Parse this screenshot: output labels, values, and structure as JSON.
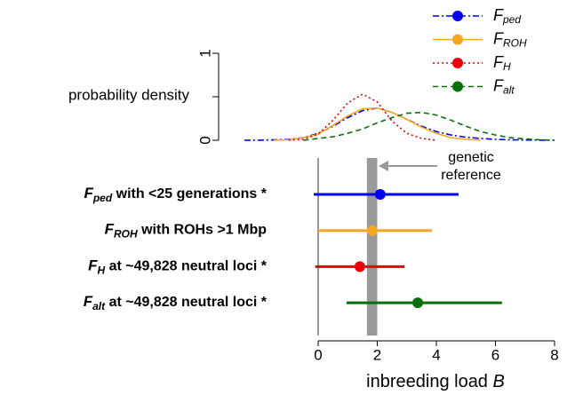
{
  "chart_data": [
    {
      "type": "density",
      "ylabel": "probability density",
      "xlim": [
        0,
        8
      ],
      "ylim": [
        0,
        1
      ],
      "yticks": [
        0,
        1
      ],
      "yminor_ticks": [
        0.5
      ],
      "series": [
        {
          "symbol": "F",
          "sub": "ped",
          "color": "#0000ee",
          "style": "dashdot",
          "x": [
            -2.5,
            -2,
            -1.5,
            -1,
            -0.5,
            0,
            0.5,
            1,
            1.5,
            2,
            2.5,
            3,
            3.5,
            4,
            4.5,
            5,
            5.5,
            6,
            6.5,
            7,
            7.5,
            8
          ],
          "values": [
            0,
            0.001,
            0.004,
            0.01,
            0.03,
            0.08,
            0.16,
            0.26,
            0.34,
            0.37,
            0.32,
            0.24,
            0.16,
            0.1,
            0.06,
            0.035,
            0.02,
            0.01,
            0.005,
            0.003,
            0.001,
            0
          ]
        },
        {
          "symbol": "F",
          "sub": "ROH",
          "color": "#f5a623",
          "style": "solid",
          "x": [
            -1.5,
            -1,
            -0.5,
            0,
            0.5,
            1,
            1.5,
            2,
            2.5,
            3,
            3.5,
            4,
            4.5,
            5,
            5.5
          ],
          "values": [
            0,
            0.005,
            0.03,
            0.07,
            0.17,
            0.28,
            0.36,
            0.37,
            0.32,
            0.24,
            0.15,
            0.08,
            0.03,
            0.01,
            0
          ]
        },
        {
          "symbol": "F",
          "sub": "H",
          "color": "#e8000b",
          "style": "dotted",
          "x": [
            -1,
            -0.5,
            0,
            0.5,
            1,
            1.5,
            2,
            2.5,
            3,
            3.5,
            4
          ],
          "values": [
            0,
            0.01,
            0.07,
            0.23,
            0.43,
            0.53,
            0.44,
            0.22,
            0.08,
            0.02,
            0
          ]
        },
        {
          "symbol": "F",
          "sub": "alt",
          "color": "#0a6e0a",
          "style": "dashed",
          "x": [
            -0.5,
            0,
            0.5,
            1,
            1.5,
            2,
            2.5,
            3,
            3.5,
            4,
            4.5,
            5,
            5.5,
            6,
            6.5,
            7,
            7.5,
            8
          ],
          "values": [
            0,
            0.02,
            0.04,
            0.08,
            0.13,
            0.2,
            0.26,
            0.31,
            0.32,
            0.29,
            0.23,
            0.16,
            0.1,
            0.06,
            0.03,
            0.015,
            0.005,
            0
          ]
        }
      ]
    },
    {
      "type": "forest",
      "xlabel": "inbreeding load ",
      "xlabel_var": "B",
      "xlim": [
        0,
        8
      ],
      "xticks": [
        0,
        2,
        4,
        6,
        8
      ],
      "reference": {
        "lower": 1.65,
        "upper": 2.0,
        "label": [
          "genetic",
          "reference"
        ]
      },
      "rows": [
        {
          "symbol": "F",
          "sub": "ped",
          "text": " with <25 generations *",
          "estimate": 2.1,
          "lower": -0.15,
          "upper": 4.75,
          "color": "#0000ee"
        },
        {
          "symbol": "F",
          "sub": "ROH",
          "text": " with ROHs >1 Mbp",
          "estimate": 1.83,
          "lower": 0,
          "upper": 3.85,
          "color": "#f5a623"
        },
        {
          "symbol": "F",
          "sub": "H",
          "text": " at ~49,828 neutral loci *",
          "estimate": 1.41,
          "lower": -0.1,
          "upper": 2.92,
          "color": "#e8000b"
        },
        {
          "symbol": "F",
          "sub": "alt",
          "text": " at ~49,828 neutral loci *",
          "estimate": 3.37,
          "lower": 0.96,
          "upper": 6.22,
          "color": "#0a6e0a"
        }
      ]
    }
  ]
}
